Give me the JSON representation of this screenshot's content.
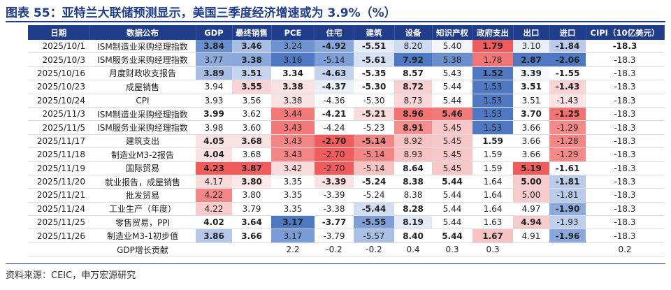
{
  "title": "图表 55：亚特兰大联储预测显示，美国三季度经济增速或为 3.9%（%）",
  "columns": [
    "日期",
    "数据公布",
    "GDP",
    "最终销售",
    "PCE",
    "住宅",
    "建筑",
    "设备",
    "知识产权",
    "政府支出",
    "出口",
    "进口",
    "CIPI（10亿美元）"
  ],
  "rows": [
    {
      "date": "2025/10/1",
      "event": "ISM制造业采购经理指数",
      "values": [
        "3.84",
        "3.46",
        "3.24",
        "-4.92",
        "-5.51",
        "8.20",
        "5.40",
        "1.79",
        "3.10",
        "-1.84",
        "-18.3"
      ],
      "bg": [
        "#6b8fcc",
        "#a9bee3",
        "#6f93ce",
        "#8aa8da",
        "#e5ecf7",
        "#cfdbf0",
        "#f3f5fb",
        "#f05c5c",
        "#e9eef7",
        "#bccbea",
        "#ffffff"
      ],
      "bold": [
        true,
        true,
        false,
        true,
        true,
        false,
        false,
        true,
        false,
        true,
        true
      ]
    },
    {
      "date": "2025/10/3",
      "event": "ISM服务业采购经理指数",
      "values": [
        "3.77",
        "3.38",
        "3.16",
        "-5.14",
        "-5.61",
        "7.92",
        "5.38",
        "1.78",
        "2.87",
        "-2.06",
        "-18.3"
      ],
      "bg": [
        "#8eaadb",
        "#8aa8da",
        "#4e78c2",
        "#7d9ed6",
        "#d5e0f2",
        "#4e78c2",
        "#6b8fcc",
        "#f47575",
        "#4e78c2",
        "#4e78c2",
        "#ffffff"
      ],
      "bold": [
        false,
        true,
        false,
        false,
        true,
        true,
        false,
        false,
        true,
        true,
        false
      ]
    },
    {
      "date": "2025/10/16",
      "event": "月度财政收支报告",
      "values": [
        "3.89",
        "3.51",
        "3.34",
        "-4.63",
        "-5.35",
        "8.57",
        "5.43",
        "1.52",
        "3.39",
        "-1.55",
        "-18.3"
      ],
      "bg": [
        "#a8bde3",
        "#c6d4ee",
        "#ffffff",
        "#c5d3ee",
        "#ffffff",
        "#ffffff",
        "#ffffff",
        "#4e78c2",
        "#f7f9fc",
        "#ffffff",
        "#ffffff"
      ],
      "bold": [
        true,
        true,
        true,
        true,
        true,
        true,
        false,
        true,
        true,
        true,
        false
      ]
    },
    {
      "date": "2025/10/23",
      "event": "成屋销售",
      "values": [
        "3.94",
        "3.55",
        "3.38",
        "-4.37",
        "-5.30",
        "8.72",
        "5.44",
        "1.53",
        "3.51",
        "-1.43",
        "-18.3"
      ],
      "bg": [
        "#ffffff",
        "#f5d5d5",
        "#fbe2e2",
        "#eaeff8",
        "#ffffff",
        "#f9d0d0",
        "#ffffff",
        "#4e78c2",
        "#ffffff",
        "#f9d4d4",
        "#ffffff"
      ],
      "bold": [
        false,
        true,
        true,
        true,
        true,
        true,
        false,
        false,
        true,
        true,
        false
      ]
    },
    {
      "date": "2025/10/24",
      "event": "CPI",
      "values": [
        "3.93",
        "3.56",
        "3.38",
        "-4.36",
        "-5.30",
        "8.73",
        "5.44",
        "1.53",
        "3.51",
        "-1.43",
        "-18.3"
      ],
      "bg": [
        "#ffffff",
        "#ffffff",
        "#fbe2e2",
        "#ffffff",
        "#ffffff",
        "#fbd7d7",
        "#ffffff",
        "#4e78c2",
        "#ffffff",
        "#fde3e3",
        "#ffffff"
      ],
      "bold": [
        false,
        false,
        false,
        false,
        false,
        false,
        false,
        false,
        false,
        false,
        false
      ]
    },
    {
      "date": "2025/11/3",
      "event": "ISM制造业采购经理指数",
      "values": [
        "3.99",
        "3.62",
        "3.44",
        "-4.21",
        "-5.21",
        "8.96",
        "5.46",
        "1.53",
        "3.70",
        "-1.25",
        "-18.3"
      ],
      "bg": [
        "#ffffff",
        "#ffffff",
        "#f47a7a",
        "#ffffff",
        "#fbdcdc",
        "#f37373",
        "#f47a7a",
        "#4e78c2",
        "#ffffff",
        "#f37373",
        "#ffffff"
      ],
      "bold": [
        true,
        false,
        false,
        true,
        true,
        true,
        true,
        false,
        true,
        true,
        false
      ]
    },
    {
      "date": "2025/11/5",
      "event": "ISM服务业采购经理指数",
      "values": [
        "3.98",
        "3.60",
        "3.43",
        "-4.24",
        "-5.23",
        "8.91",
        "5.45",
        "1.53",
        "3.66",
        "-1.29",
        "-18.3"
      ],
      "bg": [
        "#ffffff",
        "#ffffff",
        "#f47a7a",
        "#ffffff",
        "#ffffff",
        "#f68e8e",
        "#f8c8c8",
        "#4e78c2",
        "#ffffff",
        "#f58a8a",
        "#ffffff"
      ],
      "bold": [
        false,
        false,
        false,
        false,
        false,
        true,
        false,
        false,
        false,
        false,
        false
      ]
    },
    {
      "date": "2025/11/17",
      "event": "建筑支出",
      "values": [
        "4.05",
        "3.68",
        "3.43",
        "-2.70",
        "-5.14",
        "8.92",
        "5.45",
        "1.59",
        "3.66",
        "-1.28",
        "-18.3"
      ],
      "bg": [
        "#fbe2e2",
        "#fbe2e2",
        "#f58686",
        "#f05c5c",
        "#f58686",
        "#f8c3c3",
        "#f8c8c8",
        "#ffffff",
        "#ffffff",
        "#f58686",
        "#ffffff"
      ],
      "bold": [
        true,
        true,
        false,
        true,
        true,
        false,
        false,
        true,
        false,
        false,
        false
      ]
    },
    {
      "date": "2025/11/18",
      "event": "制造业M3-2报告",
      "values": [
        "4.04",
        "3.68",
        "3.43",
        "-2.70",
        "-5.14",
        "8.93",
        "5.45",
        "1.59",
        "3.66",
        "-1.29",
        "-18.3"
      ],
      "bg": [
        "#fbe2e2",
        "#ffffff",
        "#f58686",
        "#f05c5c",
        "#f58686",
        "#f8c3c3",
        "#f8c8c8",
        "#ffffff",
        "#ffffff",
        "#f58a8a",
        "#ffffff"
      ],
      "bold": [
        true,
        false,
        false,
        false,
        false,
        false,
        false,
        false,
        false,
        false,
        false
      ]
    },
    {
      "date": "2025/11/19",
      "event": "国际贸易",
      "values": [
        "4.23",
        "3.87",
        "3.42",
        "-2.70",
        "-5.14",
        "8.64",
        "5.45",
        "1.59",
        "5.19",
        "-1.61",
        "-18.3"
      ],
      "bg": [
        "#f05c5c",
        "#f05c5c",
        "#fbdcdc",
        "#f05c5c",
        "#f8c3c3",
        "#ffffff",
        "#f8c8c8",
        "#ffffff",
        "#f05c5c",
        "#ffffff",
        "#ffffff"
      ],
      "bold": [
        true,
        true,
        false,
        false,
        false,
        true,
        false,
        false,
        true,
        true,
        false
      ]
    },
    {
      "date": "2025/11/20",
      "event": "就业报告，成屋销售",
      "values": [
        "4.17",
        "3.80",
        "3.35",
        "-3.39",
        "-5.24",
        "8.38",
        "5.44",
        "1.64",
        "5.00",
        "-1.81",
        "-18.3"
      ],
      "bg": [
        "#fbdada",
        "#fde8e8",
        "#ffffff",
        "#fbe2e2",
        "#ffffff",
        "#ffffff",
        "#ffffff",
        "#ffffff",
        "#f9cccc",
        "#bccbea",
        "#ffffff"
      ],
      "bold": [
        false,
        true,
        false,
        true,
        true,
        true,
        true,
        false,
        true,
        true,
        false
      ]
    },
    {
      "date": "2025/11/21",
      "event": "批发贸易",
      "values": [
        "4.22",
        "3.80",
        "3.35",
        "-3.39",
        "-5.24",
        "8.38",
        "5.44",
        "1.64",
        "5.00",
        "-1.81",
        "-18.3"
      ],
      "bg": [
        "#f58686",
        "#ffffff",
        "#ffffff",
        "#ffffff",
        "#ffffff",
        "#ffffff",
        "#ffffff",
        "#ffffff",
        "#f9cccc",
        "#bccbea",
        "#ffffff"
      ],
      "bold": [
        false,
        false,
        false,
        false,
        false,
        false,
        false,
        false,
        false,
        false,
        false
      ]
    },
    {
      "date": "2025/11/24",
      "event": "工业生产（年度）",
      "values": [
        "4.22",
        "3.79",
        "3.35",
        "-3.38",
        "-5.44",
        "8.28",
        "5.44",
        "1.64",
        "4.97",
        "-1.90",
        "-18.3"
      ],
      "bg": [
        "#f9cccc",
        "#ffffff",
        "#ffffff",
        "#ffffff",
        "#d1ddf1",
        "#ffffff",
        "#ffffff",
        "#ffffff",
        "#ffffff",
        "#8fabdc",
        "#ffffff"
      ],
      "bold": [
        false,
        false,
        false,
        false,
        true,
        true,
        false,
        false,
        false,
        true,
        false
      ]
    },
    {
      "date": "2025/11/25",
      "event": "零售贸易，PPI",
      "values": [
        "4.02",
        "3.64",
        "3.17",
        "-3.77",
        "-5.55",
        "8.19",
        "5.44",
        "1.63",
        "4.94",
        "-1.93",
        "-18.3"
      ],
      "bg": [
        "#ffffff",
        "#ffffff",
        "#4e78c2",
        "#ffffff",
        "#7f9fd6",
        "#e4ebf7",
        "#ffffff",
        "#ffffff",
        "#f9cccc",
        "#c0cfec",
        "#ffffff"
      ],
      "bold": [
        true,
        true,
        true,
        true,
        true,
        true,
        false,
        false,
        true,
        false,
        false
      ]
    },
    {
      "date": "2025/11/26",
      "event": "制造业M3-1初步值",
      "values": [
        "3.86",
        "3.66",
        "3.17",
        "-3.79",
        "-5.57",
        "8.40",
        "5.44",
        "1.67",
        "4.91",
        "-1.96",
        "-18.3"
      ],
      "bg": [
        "#b6c8e8",
        "#ffffff",
        "#7b9cd5",
        "#ffffff",
        "#aac0e5",
        "#ffffff",
        "#ffffff",
        "#f8c3c3",
        "#ffffff",
        "#8aa8da",
        "#ffffff"
      ],
      "bold": [
        true,
        true,
        false,
        false,
        false,
        true,
        true,
        true,
        false,
        true,
        false
      ]
    }
  ],
  "footer": {
    "label": "GDP增长贡献",
    "values": [
      "",
      "",
      "2.2",
      "-0.2",
      "-0.2",
      "0.4",
      "0.3",
      "0.3",
      "",
      "",
      "0.2"
    ]
  },
  "source": "资料来源：CEIC，申万宏源研究"
}
